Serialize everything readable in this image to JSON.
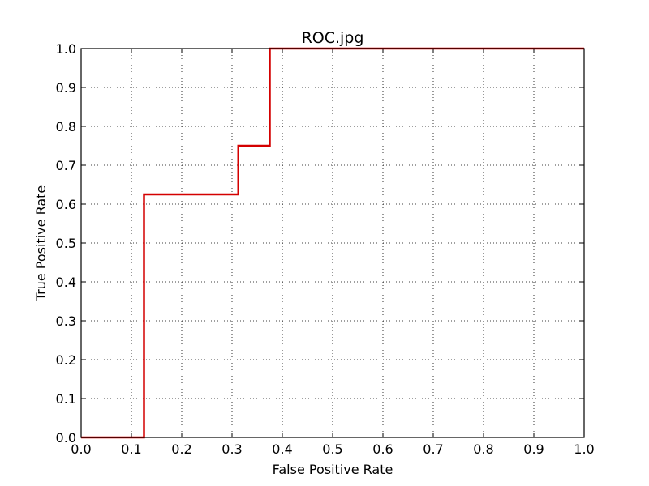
{
  "chart_data": {
    "type": "line",
    "title": "ROC.jpg",
    "xlabel": "False Positive Rate",
    "ylabel": "True Positive Rate",
    "xlim": [
      0.0,
      1.0
    ],
    "ylim": [
      0.0,
      1.0
    ],
    "grid": true,
    "x_ticks": [
      "0.0",
      "0.1",
      "0.2",
      "0.3",
      "0.4",
      "0.5",
      "0.6",
      "0.7",
      "0.8",
      "0.9",
      "1.0"
    ],
    "y_ticks": [
      "0.0",
      "0.1",
      "0.2",
      "0.3",
      "0.4",
      "0.5",
      "0.6",
      "0.7",
      "0.8",
      "0.9",
      "1.0"
    ],
    "series": [
      {
        "color": "#d40000",
        "x": [
          0.0,
          0.125,
          0.125,
          0.3125,
          0.3125,
          0.375,
          0.375,
          1.0
        ],
        "y": [
          0.0,
          0.0,
          0.625,
          0.625,
          0.75,
          0.75,
          1.0,
          1.0
        ]
      }
    ]
  }
}
